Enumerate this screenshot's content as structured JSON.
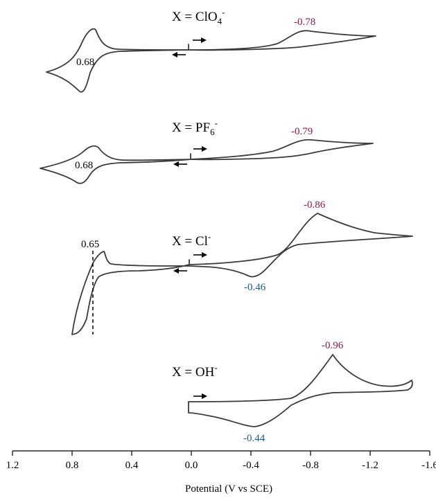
{
  "chart_data": {
    "type": "line",
    "xlabel": "Potential (V vs SCE)",
    "xlim": [
      1.2,
      -1.6
    ],
    "xaxis_reversed": true,
    "xticks": [
      1.2,
      0.8,
      0.4,
      0.0,
      -0.4,
      -0.8,
      -1.2,
      -1.6
    ],
    "xtick_labels": [
      "1.2",
      "0.8",
      "0.4",
      "0.0",
      "-0.4",
      "-0.8",
      "-1.2",
      "-1.6"
    ],
    "colors": {
      "trace": "#3a3a3a",
      "cathodic_label": "#8b1a4a",
      "anodic_label": "#1f5a8c"
    },
    "panels": [
      {
        "title_prefix": "X = ClO",
        "title_sub": "4",
        "title_sup": "-",
        "annotations": [
          {
            "text": "-0.78",
            "potential": -0.78,
            "kind": "cathodic"
          },
          {
            "text": "0.68",
            "potential": 0.68,
            "kind": "oxidation"
          }
        ],
        "scan": {
          "start": 0.0,
          "reverse": -1.25,
          "end": 1.0
        }
      },
      {
        "title_prefix": "X = PF",
        "title_sub": "6",
        "title_sup": "-",
        "annotations": [
          {
            "text": "-0.79",
            "potential": -0.79,
            "kind": "cathodic"
          },
          {
            "text": "0.68",
            "potential": 0.68,
            "kind": "oxidation"
          }
        ],
        "scan": {
          "start": 0.0,
          "reverse": -1.22,
          "end": 1.03
        }
      },
      {
        "title_prefix": "X = Cl",
        "title_sub": "",
        "title_sup": "-",
        "annotations": [
          {
            "text": "-0.86",
            "potential": -0.86,
            "kind": "cathodic"
          },
          {
            "text": "-0.46",
            "potential": -0.46,
            "kind": "anodic"
          },
          {
            "text": "0.65",
            "potential": 0.65,
            "kind": "oxidation"
          }
        ],
        "scan": {
          "start": 0.0,
          "reverse": -1.5,
          "end": 0.82
        }
      },
      {
        "title_prefix": "X = OH",
        "title_sub": "",
        "title_sup": "-",
        "annotations": [
          {
            "text": "-0.96",
            "potential": -0.96,
            "kind": "cathodic"
          },
          {
            "text": "-0.44",
            "potential": -0.44,
            "kind": "anodic"
          }
        ],
        "scan": {
          "start": 0.0,
          "reverse": -1.5,
          "end": 0.0
        }
      }
    ]
  }
}
